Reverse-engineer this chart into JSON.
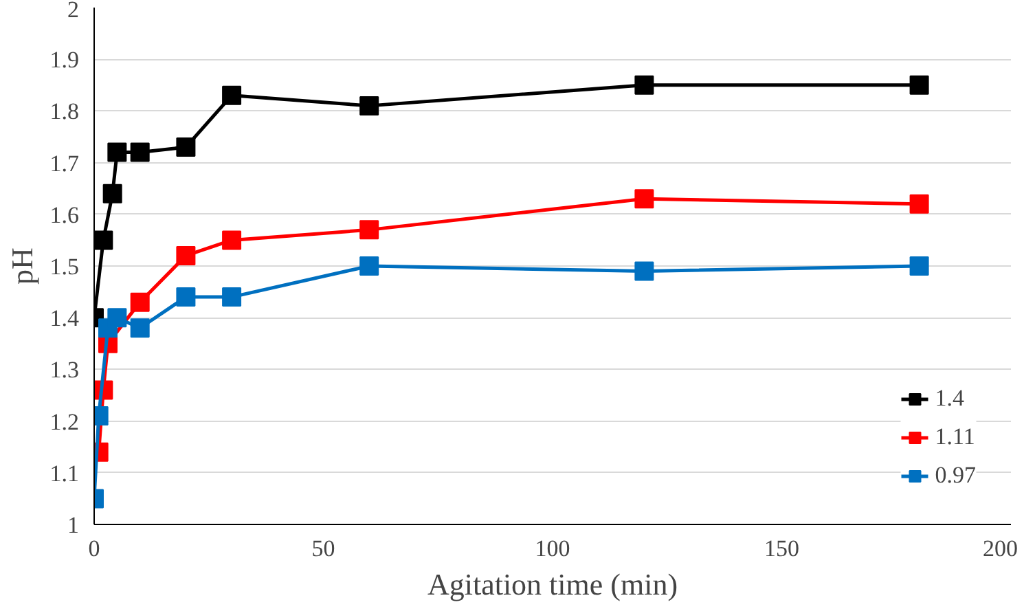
{
  "chart_data": {
    "type": "line",
    "xlabel": "Agitation time (min)",
    "ylabel": "pH",
    "xlim": [
      0,
      200
    ],
    "xticks": [
      0,
      50,
      100,
      150,
      200
    ],
    "ylim": [
      1,
      2
    ],
    "yticks": [
      1,
      1.1,
      1.2,
      1.3,
      1.4,
      1.5,
      1.6,
      1.7,
      1.8,
      1.9,
      2
    ],
    "grid": "y",
    "legend": "bottom right",
    "marker": "square",
    "series": [
      {
        "name": "1.4",
        "color": "#000000",
        "x": [
          0,
          2,
          4,
          5,
          10,
          20,
          30,
          60,
          120,
          180
        ],
        "values": [
          1.4,
          1.55,
          1.64,
          1.72,
          1.72,
          1.73,
          1.83,
          1.81,
          1.85,
          1.85
        ]
      },
      {
        "name": "1.11",
        "color": "#ff0000",
        "x": [
          1,
          2,
          3,
          10,
          20,
          30,
          60,
          120,
          180
        ],
        "values": [
          1.14,
          1.26,
          1.35,
          1.43,
          1.52,
          1.55,
          1.57,
          1.63,
          1.62
        ]
      },
      {
        "name": "0.97",
        "color": "#0070c0",
        "x": [
          0,
          1,
          3,
          5,
          10,
          20,
          30,
          60,
          120,
          180
        ],
        "values": [
          1.05,
          1.21,
          1.38,
          1.4,
          1.38,
          1.44,
          1.44,
          1.5,
          1.49,
          1.5
        ]
      }
    ]
  }
}
